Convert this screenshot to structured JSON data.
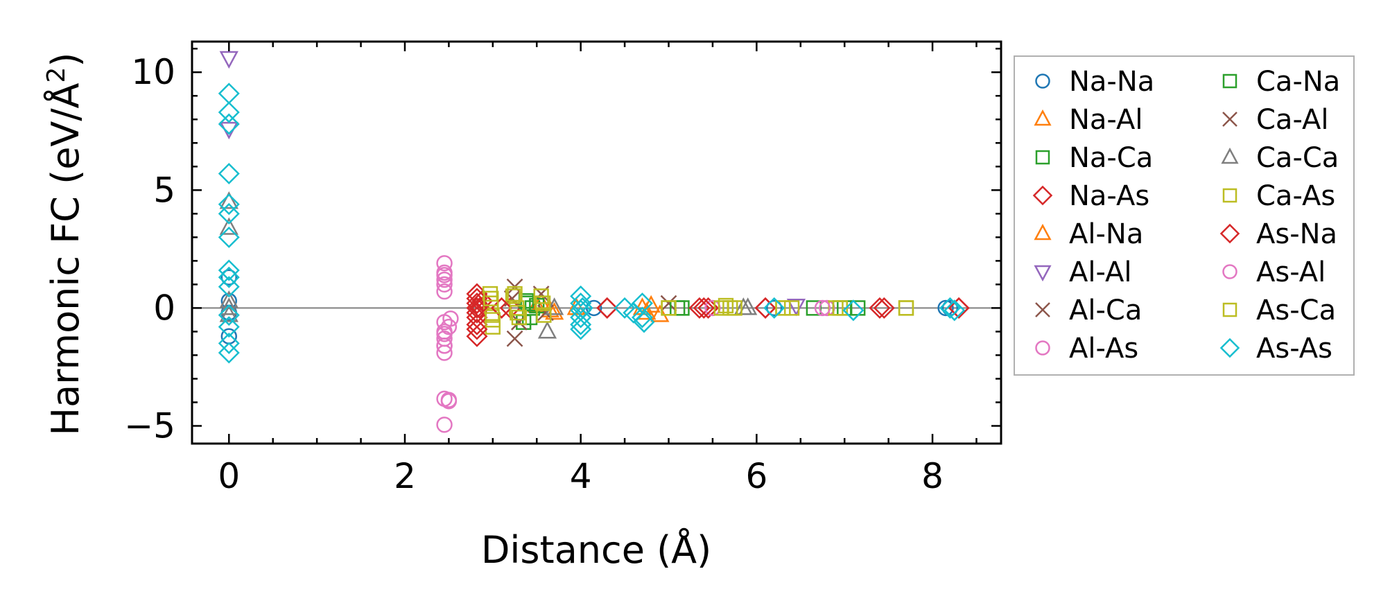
{
  "chart_data": {
    "type": "scatter",
    "title": "",
    "xlabel": "Distance (Å)",
    "ylabel_main": "Harmonic FC (eV/Å",
    "ylabel_sup": "2",
    "ylabel_close": ")",
    "xlim": [
      -0.42,
      8.78
    ],
    "ylim": [
      -5.75,
      11.3
    ],
    "xticks": [
      0,
      2,
      4,
      6,
      8
    ],
    "xtick_labels": [
      "0",
      "2",
      "4",
      "6",
      "8"
    ],
    "yticks": [
      -5,
      0,
      5,
      10
    ],
    "ytick_labels": [
      "−5",
      "0",
      "5",
      "10"
    ],
    "reference_line_y": 0,
    "legend_position": "outside-right",
    "series": [
      {
        "name": "Na-Na",
        "marker": "circle",
        "color": "#1f77b4",
        "x": [
          0,
          0,
          0,
          0,
          4.15,
          6.2,
          8.15,
          8.2
        ],
        "y": [
          0.3,
          -0.2,
          1.3,
          -1.2,
          0.0,
          0.0,
          0.0,
          0.0
        ]
      },
      {
        "name": "Na-Al",
        "marker": "triangle-up",
        "color": "#ff7f0e",
        "x": [
          3.5,
          3.7,
          3.95,
          4.75,
          4.8
        ],
        "y": [
          0.1,
          -0.2,
          0.0,
          -0.2,
          0.1
        ]
      },
      {
        "name": "Na-Ca",
        "marker": "square",
        "color": "#2ca02c",
        "x": [
          3.35,
          3.4,
          3.45,
          5.15,
          6.65,
          7.0
        ],
        "y": [
          -0.6,
          0.2,
          0.0,
          0.0,
          0.0,
          0.0
        ]
      },
      {
        "name": "Na-As",
        "marker": "diamond",
        "color": "#d62728",
        "x": [
          2.82,
          2.82,
          2.82,
          2.82,
          2.82,
          2.85,
          2.88,
          3.1,
          3.2,
          4.3,
          5.35,
          5.45,
          6.1,
          7.45,
          8.3
        ],
        "y": [
          0.6,
          0.2,
          -0.2,
          -0.7,
          -1.2,
          0.0,
          0.3,
          0.0,
          0.0,
          0.0,
          0.0,
          0.0,
          0.0,
          0.0,
          0.0
        ]
      },
      {
        "name": "Al-Na",
        "marker": "triangle-up",
        "color": "#ff7f0e",
        "x": [
          3.55,
          3.65,
          4.7,
          4.9
        ],
        "y": [
          0.2,
          -0.1,
          0.0,
          -0.3
        ]
      },
      {
        "name": "Al-Al",
        "marker": "triangle-down",
        "color": "#9467bd",
        "x": [
          0,
          0,
          6.45
        ],
        "y": [
          10.6,
          7.6,
          0.1
        ]
      },
      {
        "name": "Al-Ca",
        "marker": "x",
        "color": "#8c564b",
        "x": [
          3.25,
          3.25,
          3.55,
          5.0
        ],
        "y": [
          0.9,
          -1.3,
          0.6,
          0.2
        ]
      },
      {
        "name": "Al-As",
        "marker": "circle",
        "color": "#e377c2",
        "x": [
          2.45,
          2.45,
          2.45,
          2.45,
          2.45,
          2.45,
          2.45,
          2.45,
          2.45,
          2.45,
          2.5,
          2.52,
          2.5,
          2.45,
          5.5,
          6.8
        ],
        "y": [
          1.9,
          1.5,
          1.2,
          0.7,
          -0.6,
          -1.0,
          -1.3,
          -1.6,
          -1.9,
          -3.85,
          -3.95,
          -0.45,
          -0.8,
          -4.95,
          0.0,
          0.0
        ]
      },
      {
        "name": "Ca-Na",
        "marker": "square",
        "color": "#2ca02c",
        "x": [
          3.38,
          3.42,
          3.5,
          5.1,
          6.95,
          7.15
        ],
        "y": [
          0.3,
          -0.4,
          0.1,
          0.0,
          0.0,
          0.0
        ]
      },
      {
        "name": "Ca-Al",
        "marker": "x",
        "color": "#8c564b",
        "x": [
          3.22,
          3.3,
          3.6
        ],
        "y": [
          0.4,
          -0.6,
          -0.2
        ]
      },
      {
        "name": "Ca-Ca",
        "marker": "triangle-up",
        "color": "#7f7f7f",
        "x": [
          0,
          0,
          0,
          0,
          0,
          3.62,
          3.7,
          5.85,
          5.9
        ],
        "y": [
          4.5,
          3.4,
          0.3,
          -0.3,
          0.0,
          -1.0,
          0.0,
          0.0,
          0.0
        ]
      },
      {
        "name": "Ca-As",
        "marker": "square",
        "color": "#bcbd22",
        "x": [
          2.97,
          2.98,
          2.99,
          3.0,
          3.23,
          3.27,
          3.3,
          3.55,
          3.58,
          5.0,
          5.6,
          5.75,
          6.3,
          6.4,
          6.9,
          7.7
        ],
        "y": [
          0.6,
          0.2,
          -0.3,
          -0.8,
          0.5,
          0.0,
          -0.4,
          0.5,
          -0.3,
          0.0,
          0.0,
          0.0,
          0.0,
          0.0,
          0.0,
          0.0
        ]
      },
      {
        "name": "As-Na",
        "marker": "diamond",
        "color": "#d62728",
        "x": [
          2.82,
          2.82,
          2.82,
          2.82,
          3.1,
          4.3,
          5.4,
          6.1,
          7.4,
          8.3
        ],
        "y": [
          0.4,
          0.0,
          -0.4,
          -0.9,
          0.0,
          0.0,
          0.0,
          0.0,
          0.0,
          0.0
        ]
      },
      {
        "name": "As-Al",
        "marker": "circle",
        "color": "#e377c2",
        "x": [
          2.45,
          2.45,
          2.45,
          2.45,
          2.5,
          6.75
        ],
        "y": [
          1.4,
          1.0,
          -1.1,
          -1.6,
          -3.9,
          0.0
        ]
      },
      {
        "name": "As-Ca",
        "marker": "square",
        "color": "#bcbd22",
        "x": [
          2.98,
          3.0,
          3.25,
          3.28,
          3.57,
          5.0,
          5.65,
          5.7,
          6.3,
          6.95,
          7.7
        ],
        "y": [
          0.4,
          -0.5,
          0.6,
          -0.2,
          0.2,
          0.0,
          0.1,
          0.0,
          0.0,
          0.0,
          0.0
        ]
      },
      {
        "name": "As-As",
        "marker": "diamond",
        "color": "#17becf",
        "x": [
          0,
          0,
          0,
          0,
          0,
          0,
          0,
          0,
          0,
          0,
          0,
          0,
          0,
          0,
          4.0,
          4.0,
          4.0,
          4.0,
          4.0,
          4.0,
          4.02,
          4.5,
          4.6,
          4.7,
          4.7,
          4.72,
          6.2,
          7.1,
          8.2,
          8.25
        ],
        "y": [
          9.1,
          8.3,
          7.8,
          5.7,
          4.4,
          4.0,
          3.0,
          1.6,
          1.3,
          0.9,
          -0.3,
          -0.8,
          -1.5,
          -1.9,
          0.5,
          0.2,
          -0.1,
          -0.4,
          -0.7,
          -0.9,
          0.0,
          0.0,
          -0.2,
          0.2,
          -0.4,
          -0.6,
          0.0,
          -0.1,
          0.0,
          -0.1
        ]
      }
    ]
  }
}
